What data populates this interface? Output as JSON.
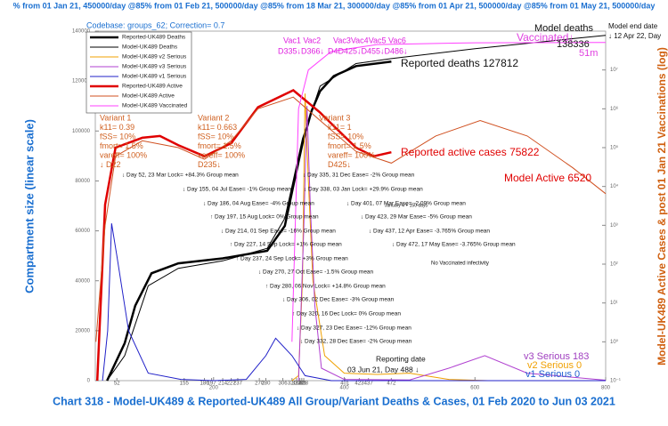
{
  "chart_data": {
    "type": "line",
    "banner": "% from 01 Jan 21, 450000/day @85% from 01 Feb 21, 500000/day @85% from 18 Mar 21, 300000/day @85% from 01 Apr 21, 500000/day @85% from 01 May 21, 500000/day",
    "subtitle": "Codebase: groups_62; Correction= 0.7",
    "title": "Chart 318 - Model-UK489 & Reported-UK489 All Group/Variant Deaths & Cases, 01 Feb 2020 to Jun 03 2021",
    "ylabel": "Compartment size (linear scale)",
    "y2label": "Model-UK489 Active Cases & post 01 Jan 21 Vaccinations (log)",
    "xlim": [
      19,
      800
    ],
    "xticks": [
      200,
      400,
      600,
      800
    ],
    "ylim": [
      0,
      140000
    ],
    "yticks": [
      0,
      20000,
      40000,
      60000,
      80000,
      100000,
      120000,
      140000
    ],
    "y2lim": [
      0.1,
      100000000
    ],
    "y2_log": true,
    "y2ticks": [
      {
        "value": 0.1,
        "label": "10⁻¹"
      },
      {
        "value": 1,
        "label": "10⁰"
      },
      {
        "value": 10,
        "label": "10¹"
      },
      {
        "value": 100,
        "label": "10²"
      },
      {
        "value": 1000,
        "label": "10³"
      },
      {
        "value": 10000,
        "label": "10⁴"
      },
      {
        "value": 100000,
        "label": "10⁵"
      },
      {
        "value": 1000000,
        "label": "10⁶"
      },
      {
        "value": 10000000,
        "label": "10⁷"
      }
    ],
    "legend": "upper left",
    "series": [
      {
        "name": "Reported-UK489 Deaths",
        "color": "#000000",
        "width": 2.5,
        "x": [
          37,
          64,
          80,
          105,
          146,
          214,
          282,
          309,
          322,
          336,
          350,
          363,
          384,
          418,
          472
        ],
        "values": [
          0,
          15000,
          30000,
          43000,
          47000,
          49000,
          52000,
          62000,
          78000,
          95000,
          108000,
          116000,
          122000,
          126000,
          127812
        ]
      },
      {
        "name": "Model-UK489 Deaths",
        "color": "#000000",
        "width": 1,
        "x": [
          37,
          64,
          100,
          146,
          214,
          282,
          309,
          336,
          363,
          418,
          472,
          600,
          800
        ],
        "values": [
          0,
          10000,
          38000,
          45000,
          48000,
          53000,
          65000,
          97000,
          118000,
          127000,
          129000,
          133000,
          138336
        ]
      },
      {
        "name": "Model-UK489 v2 Serious",
        "color": "#f0a000",
        "width": 1,
        "x": [
          320,
          330,
          336,
          340,
          345,
          352,
          370,
          400,
          450,
          500,
          560,
          620,
          800
        ],
        "values": [
          0,
          2000,
          40000,
          115000,
          80000,
          40000,
          10000,
          3000,
          2500,
          3000,
          500,
          0,
          0
        ]
      },
      {
        "name": "Model-UK489 v3 Serious",
        "color": "#b040d0",
        "width": 1,
        "x": [
          330,
          338,
          343,
          348,
          355,
          365,
          400,
          500,
          560,
          615,
          680,
          800
        ],
        "values": [
          0,
          60000,
          110000,
          70000,
          30000,
          5000,
          500,
          300,
          5000,
          10000,
          3000,
          183
        ]
      },
      {
        "name": "Model-UK489 v1 Serious",
        "color": "#2020c8",
        "width": 1,
        "x": [
          30,
          38,
          44,
          52,
          70,
          100,
          150,
          200,
          250,
          280,
          295,
          320,
          340,
          380,
          800
        ],
        "values": [
          0,
          20000,
          63000,
          50000,
          20000,
          3000,
          500,
          0,
          500,
          10000,
          17000,
          10000,
          2000,
          0,
          0
        ]
      },
      {
        "name": "Reported-UK489 Active",
        "color": "#e00000",
        "width": 2.5,
        "axis": "y2",
        "x": [
          22,
          34,
          50,
          91,
          118,
          146,
          186,
          227,
          268,
          322,
          363,
          418,
          445,
          472
        ],
        "values": [
          0.1,
          3400,
          100000,
          180000,
          200000,
          115000,
          60000,
          130000,
          1100000,
          3000000,
          800000,
          100000,
          60000,
          75822
        ]
      },
      {
        "name": "Model-UK489 Active",
        "color": "#d05020",
        "width": 1,
        "axis": "y2",
        "x": [
          20,
          34,
          50,
          91,
          146,
          186,
          227,
          268,
          322,
          363,
          418,
          472,
          540,
          608,
          680,
          750,
          800
        ],
        "values": [
          1,
          1000,
          60000,
          150000,
          100000,
          50000,
          150000,
          1000000,
          2000000,
          500000,
          80000,
          40000,
          200000,
          500000,
          200000,
          30000,
          6520
        ]
      },
      {
        "name": "Model-UK489 Vaccinated",
        "color": "#ff40ff",
        "width": 1,
        "axis": "y2",
        "x": [
          320,
          330,
          345,
          380,
          450,
          600,
          800
        ],
        "values": [
          1,
          1000000,
          10000000,
          30000000,
          45000000,
          50000000,
          51000000
        ]
      }
    ],
    "event_days": [
      52,
      155,
      186,
      197,
      214,
      227,
      237,
      270,
      280,
      306,
      320,
      327,
      332,
      335,
      338,
      401,
      423,
      437,
      472
    ],
    "event_notes": [
      "↓ Day 52, 23 Mar Lock= +84.3% Group mean",
      "↓ Day 155, 04 Jul Ease= -1% Group mean",
      "↓ Day 186, 04 Aug Ease= -4% Group mean",
      "↑ Day 197, 15 Aug Lock= 0% Group mean",
      "↓ Day 214, 01 Sep Ease= -16% Group mean",
      "↑ Day 227, 14 Sep Lock= +1% Group mean",
      "↑ Day 237, 24 Sep Lock= +3% Group mean",
      "↓ Day 270, 27 Oct Ease= -1.5% Group mean",
      "↑ Day 280, 06 Nov Lock= +14.8% Group mean",
      "↓ Day 306, 02 Dec Ease= -3% Group mean",
      "↑ Day 320, 16 Dec Lock= 0% Group mean",
      "↓ Day 327, 23 Dec Ease= -12% Group mean",
      "↓ Day 332, 28 Dec Ease= -2% Group mean",
      "↓ Day 335, 31 Dec Ease= -2% Group mean",
      "↓ Day 338, 03 Jan Lock= +29.9% Group mean",
      "↓ Day 401, 07 Mar Ease= -2.09% Group mean",
      "↓ Day 423, 29 Mar Ease= -5% Group mean",
      "↓ Day 437, 12 Apr Ease= -3.765% Group mean",
      "↓ Day 472, 17 May Ease= -3.765% Group mean"
    ],
    "small_notes": [
      "January 4 + 150 days",
      "No Vaccinated infectivity",
      "Reporting date",
      "03 Jun 21, Day 488 ↓"
    ],
    "variant_notes": [
      [
        "Variant 1",
        "k11= 0.39",
        "fSS= 10%",
        "fmort= 1.5%",
        "vareff= 100%",
        "↓ D22"
      ],
      [
        "Variant 2",
        "k11= 0.663",
        "fSS= 10%",
        "fmort= 1.5%",
        "vareff= 100%",
        "D235↓"
      ],
      [
        "Variant 3",
        "k11= 1",
        "fSS= 10%",
        "fmort= 1.5%",
        "vareff= 100%",
        "D425↓"
      ]
    ],
    "vac_notes": [
      "Vac1 Vac2",
      "D335↓D366↓",
      "Vac3Vac4Vac5 Vac6",
      "D4D425↓D455↓D486↓"
    ],
    "end_labels": [
      "Model deaths",
      "Model end date",
      "↓ 12 Apr 22, Day",
      "Vaccinated↓",
      "138336",
      "51m",
      "Reported deaths 127812",
      "Reported active cases 75822",
      "Model Active 6520",
      "v3 Serious 183",
      "v2 Serious 0",
      "v1 Serious 0"
    ]
  }
}
